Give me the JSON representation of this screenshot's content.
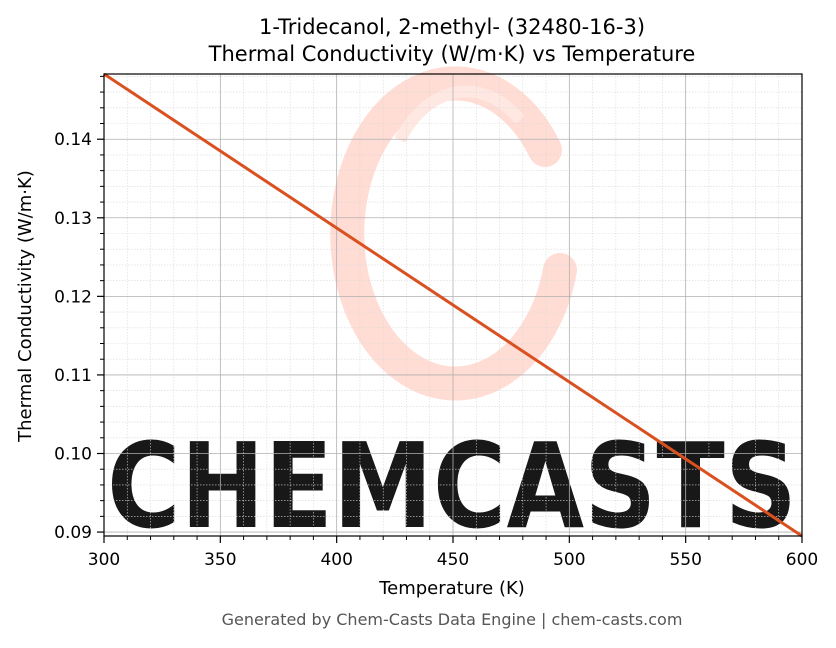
{
  "chart_data": {
    "type": "line",
    "title": "1-Tridecanol, 2-methyl- (32480-16-3)",
    "subtitle": "Thermal Conductivity (W/m·K) vs Temperature",
    "xlabel": "Temperature (K)",
    "ylabel": "Thermal Conductivity (W/m·K)",
    "xlim": [
      300,
      600
    ],
    "ylim": [
      0.0895,
      0.1483
    ],
    "x_ticks": [
      300,
      350,
      400,
      450,
      500,
      550,
      600
    ],
    "y_ticks": [
      0.09,
      0.1,
      0.11,
      0.12,
      0.13,
      0.14
    ],
    "grid": true,
    "series": [
      {
        "color": "#d95120",
        "x": [
          300,
          600
        ],
        "y": [
          0.1483,
          0.0895
        ]
      }
    ]
  },
  "watermark": {
    "text": "CHEMCASTS",
    "color": "#ffd9d0"
  },
  "footer": "Generated by Chem-Casts Data Engine | chem-casts.com"
}
